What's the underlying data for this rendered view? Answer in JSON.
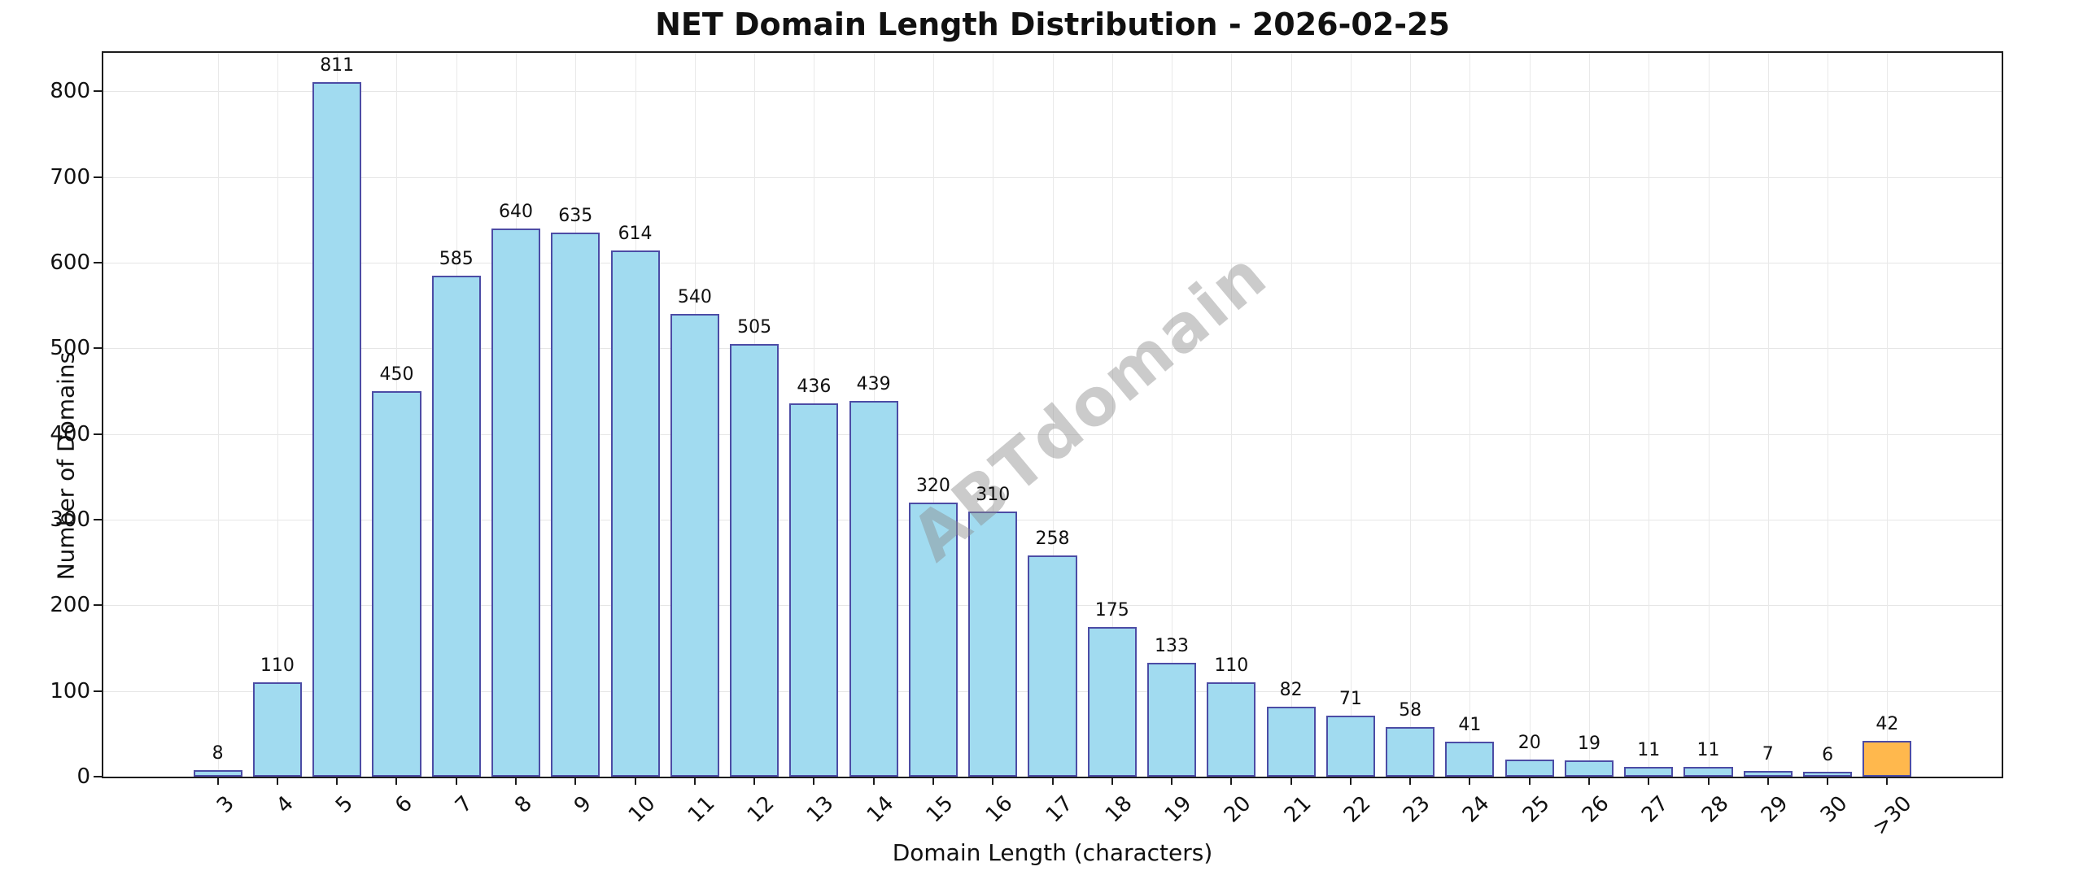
{
  "watermark": "ABTdomain",
  "chart_data": {
    "type": "bar",
    "title": "NET Domain Length Distribution - 2026-02-25",
    "xlabel": "Domain Length (characters)",
    "ylabel": "Number of Domains",
    "categories": [
      "3",
      "4",
      "5",
      "6",
      "7",
      "8",
      "9",
      "10",
      "11",
      "12",
      "13",
      "14",
      "15",
      "16",
      "17",
      "18",
      "19",
      "20",
      "21",
      "22",
      "23",
      "24",
      "25",
      "26",
      "27",
      "28",
      "29",
      "30",
      ">30"
    ],
    "values": [
      8,
      110,
      811,
      450,
      585,
      640,
      635,
      614,
      540,
      505,
      436,
      439,
      320,
      310,
      258,
      175,
      133,
      110,
      82,
      71,
      58,
      41,
      20,
      19,
      11,
      11,
      7,
      6,
      42
    ],
    "yticks": [
      0,
      100,
      200,
      300,
      400,
      500,
      600,
      700,
      800
    ],
    "ylim": [
      0,
      845
    ],
    "grid": true,
    "legend": "none",
    "bar_fill_color": "#a1dbf0",
    "bar_edge_color": "#4c4ca5",
    "last_bar_fill_color": "#ffb84d",
    "watermark_text": "ABTdomain"
  }
}
